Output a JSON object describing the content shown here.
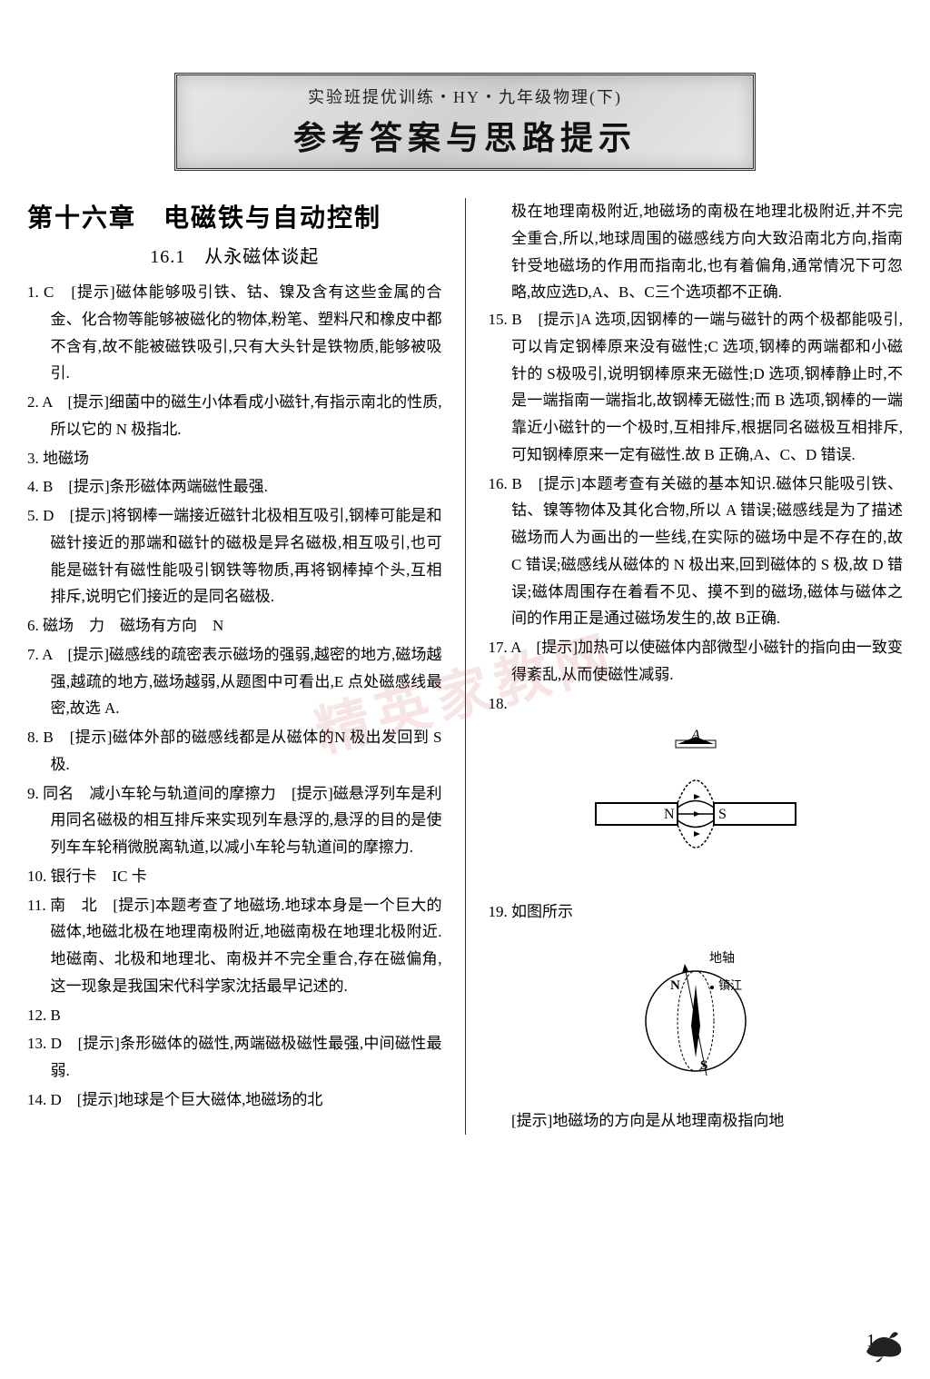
{
  "header": {
    "subtitle": "实验班提优训练・HY・九年级物理(下)",
    "title": "参考答案与思路提示"
  },
  "chapter": {
    "title": "第十六章　电磁铁与自动控制",
    "section": "16.1　从永磁体谈起"
  },
  "left_items": [
    "1. C　[提示]磁体能够吸引铁、钴、镍及含有这些金属的合金、化合物等能够被磁化的物体,粉笔、塑料尺和橡皮中都不含有,故不能被磁铁吸引,只有大头针是铁物质,能够被吸引.",
    "2. A　[提示]细菌中的磁生小体看成小磁针,有指示南北的性质,所以它的 N 极指北.",
    "3. 地磁场",
    "4. B　[提示]条形磁体两端磁性最强.",
    "5. D　[提示]将钢棒一端接近磁针北极相互吸引,钢棒可能是和磁针接近的那端和磁针的磁极是异名磁极,相互吸引,也可能是磁针有磁性能吸引钢铁等物质,再将钢棒掉个头,互相排斥,说明它们接近的是同名磁极.",
    "6. 磁场　力　磁场有方向　N",
    "7. A　[提示]磁感线的疏密表示磁场的强弱,越密的地方,磁场越强,越疏的地方,磁场越弱,从题图中可看出,E 点处磁感线最密,故选 A.",
    "8. B　[提示]磁体外部的磁感线都是从磁体的N 极出发回到 S 极.",
    "9. 同名　减小车轮与轨道间的摩擦力　[提示]磁悬浮列车是利用同名磁极的相互排斥来实现列车悬浮的,悬浮的目的是使列车车轮稍微脱离轨道,以减小车轮与轨道间的摩擦力.",
    "10. 银行卡　IC 卡",
    "11. 南　北　[提示]本题考查了地磁场.地球本身是一个巨大的磁体,地磁北极在地理南极附近,地磁南极在地理北极附近.地磁南、北极和地理北、南极并不完全重合,存在磁偏角,这一现象是我国宋代科学家沈括最早记述的.",
    "12. B",
    "13. D　[提示]条形磁体的磁性,两端磁极磁性最强,中间磁性最弱.",
    "14. D　[提示]地球是个巨大磁体,地磁场的北"
  ],
  "right_items_top": [
    "极在地理南极附近,地磁场的南极在地理北极附近,并不完全重合,所以,地球周围的磁感线方向大致沿南北方向,指南针受地磁场的作用而指南北,也有着偏角,通常情况下可忽略,故应选D,A、B、C三个选项都不正确.",
    "15. B　[提示]A 选项,因钢棒的一端与磁针的两个极都能吸引,可以肯定钢棒原来没有磁性;C 选项,钢棒的两端都和小磁针的 S极吸引,说明钢棒原来无磁性;D 选项,钢棒静止时,不是一端指南一端指北,故钢棒无磁性;而 B 选项,钢棒的一端靠近小磁针的一个极时,互相排斥,根据同名磁极互相排斥,可知钢棒原来一定有磁性.故 B 正确,A、C、D 错误.",
    "16. B　[提示]本题考查有关磁的基本知识.磁体只能吸引铁、钴、镍等物体及其化合物,所以 A 错误;磁感线是为了描述磁场而人为画出的一些线,在实际的磁场中是不存在的,故 C 错误;磁感线从磁体的 N 极出来,回到磁体的 S 极,故 D 错误;磁体周围存在着看不见、摸不到的磁场,磁体与磁体之间的作用正是通过磁场发生的,故 B正确.",
    "17. A　[提示]加热可以使磁体内部微型小磁针的指向由一致变得紊乱,从而使磁性减弱.",
    "18."
  ],
  "right_items_bottom": [
    "19. 如图所示"
  ],
  "right_footer": "[提示]地磁场的方向是从地理南极指向地",
  "figure18": {
    "label_A": "A",
    "label_N": "N",
    "label_S": "S"
  },
  "figure19": {
    "label_axis": "地轴",
    "label_city": "镇江",
    "label_N": "N",
    "label_S": "S"
  },
  "page_number": "1",
  "watermark": "精英家教网",
  "colors": {
    "text": "#000000",
    "bg": "#ffffff",
    "border": "#333333",
    "watermark": "rgba(200, 80, 80, 0.15)"
  }
}
